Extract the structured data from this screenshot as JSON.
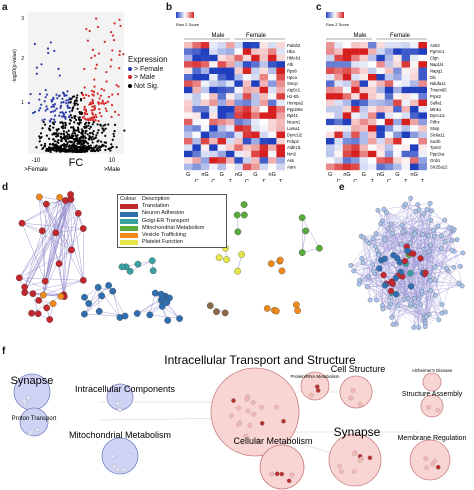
{
  "panels": {
    "a": "a",
    "b": "b",
    "c": "c",
    "d": "d",
    "e": "e",
    "f": "f"
  },
  "volcano": {
    "ylabel": "-log10(p-value)",
    "yticks": [
      "3",
      "2",
      "1"
    ],
    "xlabel": "FC",
    "xtick_left": "-10",
    "xtick_right": "10",
    "left_label": ">Female",
    "right_label": ">Male",
    "legend_title": "Expression",
    "legend_items": [
      {
        "label": "> Female",
        "color": "#2b3aa8"
      },
      {
        "label": "> Male",
        "color": "#d62728"
      },
      {
        "label": "Not Sig.",
        "color": "#000000"
      }
    ]
  },
  "heatmap_b": {
    "colorkey_title": "Row Z Score",
    "group_left": "Male",
    "group_right": "Female",
    "genes": [
      "Pafah2",
      "Hba",
      "Hbb-b1",
      "Alb",
      "Rps6",
      "Hpca",
      "Smcp",
      "Atp5c1",
      "H2-Eb",
      "Hnrnpa2",
      "Ppp2r5e",
      "Rpl41",
      "Ncam1",
      "Lama1",
      "Dync1i2",
      "Pcbp2",
      "Aldh1l1",
      "Nrn2",
      "Ass",
      "Aars"
    ],
    "columns": [
      "G",
      "C",
      "nG",
      "C",
      "G",
      "T",
      "nG",
      "C",
      "G",
      "T",
      "nG",
      "T"
    ]
  },
  "heatmap_c": {
    "colorkey_title": "Row Z Score",
    "group_left": "Male",
    "group_right": "Female",
    "genes": [
      "Ank3",
      "Pgrmc1",
      "Clgn",
      "Nap1l4",
      "Napg1",
      "Dlc",
      "Ndufa11",
      "Tmem65",
      "Prps2",
      "Sulfa1",
      "Mink1",
      "Dync1i1",
      "Pdhx",
      "Stxip",
      "Slc6a11",
      "Suclb",
      "Tpm3",
      "Ppp2ca",
      "Gnb1",
      "Slc25a12"
    ],
    "columns": [
      "G",
      "C",
      "nG",
      "C",
      "G",
      "T",
      "nG",
      "C",
      "G",
      "T",
      "nG",
      "T"
    ]
  },
  "network_legend": {
    "header_colour": "Colour",
    "header_description": "Description",
    "items": [
      {
        "label": "Translation",
        "color": "#c1272d"
      },
      {
        "label": "Neuron Adhesion",
        "color": "#2f6fb0"
      },
      {
        "label": "Golgi-ER Transport",
        "color": "#3aa0a0"
      },
      {
        "label": "Mitochondrial Metabolism",
        "color": "#5aaa3c"
      },
      {
        "label": "Vesicle Trafficking",
        "color": "#f08a1c"
      },
      {
        "label": "Platelet Function",
        "color": "#e6e64a"
      }
    ]
  },
  "enrichment_map": {
    "clusters": [
      {
        "label": "Synapse"
      },
      {
        "label": "Proton Transport"
      },
      {
        "label": "Intracellular Components"
      },
      {
        "label": "Mitochondrial Metabolism"
      },
      {
        "label": "Intracellular Transport and Structure"
      },
      {
        "label": "Protein/RNA Metabolism"
      },
      {
        "label": "Cellular Metabolism"
      },
      {
        "label": "Cell Structure"
      },
      {
        "label": "Alzheimer's Disease"
      },
      {
        "label": "Structure Assembly"
      },
      {
        "label": "Synapse"
      },
      {
        "label": "Membrane Regulation"
      }
    ]
  }
}
